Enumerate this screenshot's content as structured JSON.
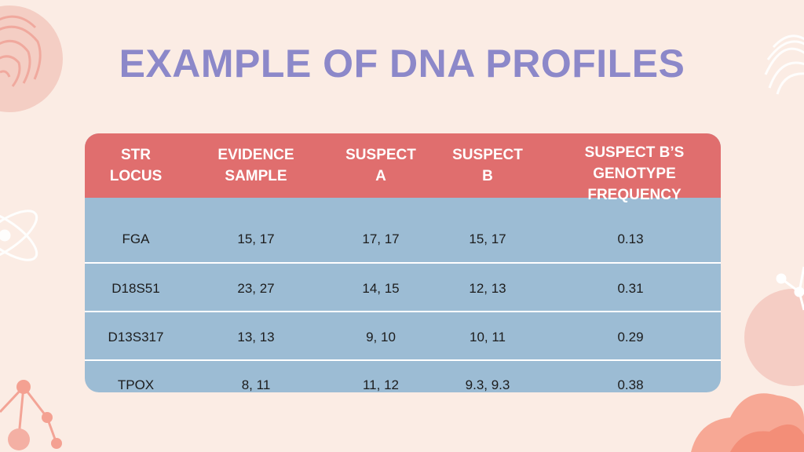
{
  "slide": {
    "title": "EXAMPLE OF DNA PROFILES"
  },
  "table": {
    "headers": [
      "STR\nLOCUS",
      "EVIDENCE\nSAMPLE",
      "SUSPECT\nA",
      "SUSPECT\nB",
      "SUSPECT B’S\nGENOTYPE\nFREQUENCY"
    ],
    "rows": [
      [
        "FGA",
        "15, 17",
        "17, 17",
        "15, 17",
        "0.13"
      ],
      [
        "D18S51",
        "23, 27",
        "14, 15",
        "12, 13",
        "0.31"
      ],
      [
        "D13S317",
        "13, 13",
        "9, 10",
        "10, 11",
        "0.29"
      ],
      [
        "TPOX",
        "8, 11",
        "11, 12",
        "9.3, 9.3",
        "0.38"
      ]
    ]
  },
  "colors": {
    "background": "#fbece4",
    "title": "#8c88c9",
    "header_fill": "#e06e6e",
    "body_fill": "#9cbcd4",
    "accent": "#f59a86"
  },
  "icons": {
    "top_left": "fingerprint-icon",
    "top_right": "fingerprint-icon",
    "left": "atom-icon",
    "right": "molecule-icon",
    "bottom_left": "molecule-icon"
  }
}
